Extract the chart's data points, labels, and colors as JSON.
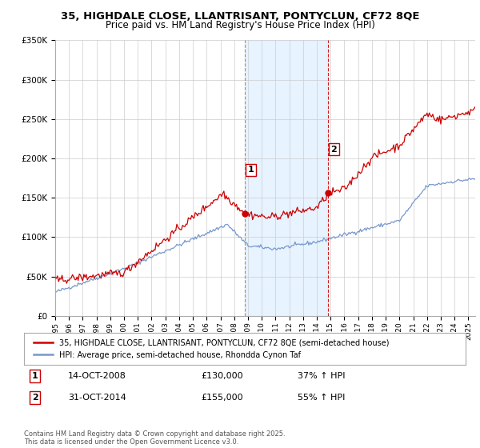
{
  "title1": "35, HIGHDALE CLOSE, LLANTRISANT, PONTYCLUN, CF72 8QE",
  "title2": "Price paid vs. HM Land Registry's House Price Index (HPI)",
  "legend_line1": "35, HIGHDALE CLOSE, LLANTRISANT, PONTYCLUN, CF72 8QE (semi-detached house)",
  "legend_line2": "HPI: Average price, semi-detached house, Rhondda Cynon Taf",
  "footer": "Contains HM Land Registry data © Crown copyright and database right 2025.\nThis data is licensed under the Open Government Licence v3.0.",
  "sale1_date": "14-OCT-2008",
  "sale1_price": "£130,000",
  "sale1_hpi": "37% ↑ HPI",
  "sale2_date": "31-OCT-2014",
  "sale2_price": "£155,000",
  "sale2_hpi": "55% ↑ HPI",
  "price_color": "#cc0000",
  "hpi_color": "#7799cc",
  "shade_color": "#ddeeff",
  "vline1_color": "#888888",
  "vline2_color": "#cc0000",
  "ylim": [
    0,
    350000
  ],
  "yticks": [
    0,
    50000,
    100000,
    150000,
    200000,
    250000,
    300000,
    350000
  ],
  "sale1_x": 2008.79,
  "sale2_x": 2014.83,
  "background_color": "#ffffff"
}
